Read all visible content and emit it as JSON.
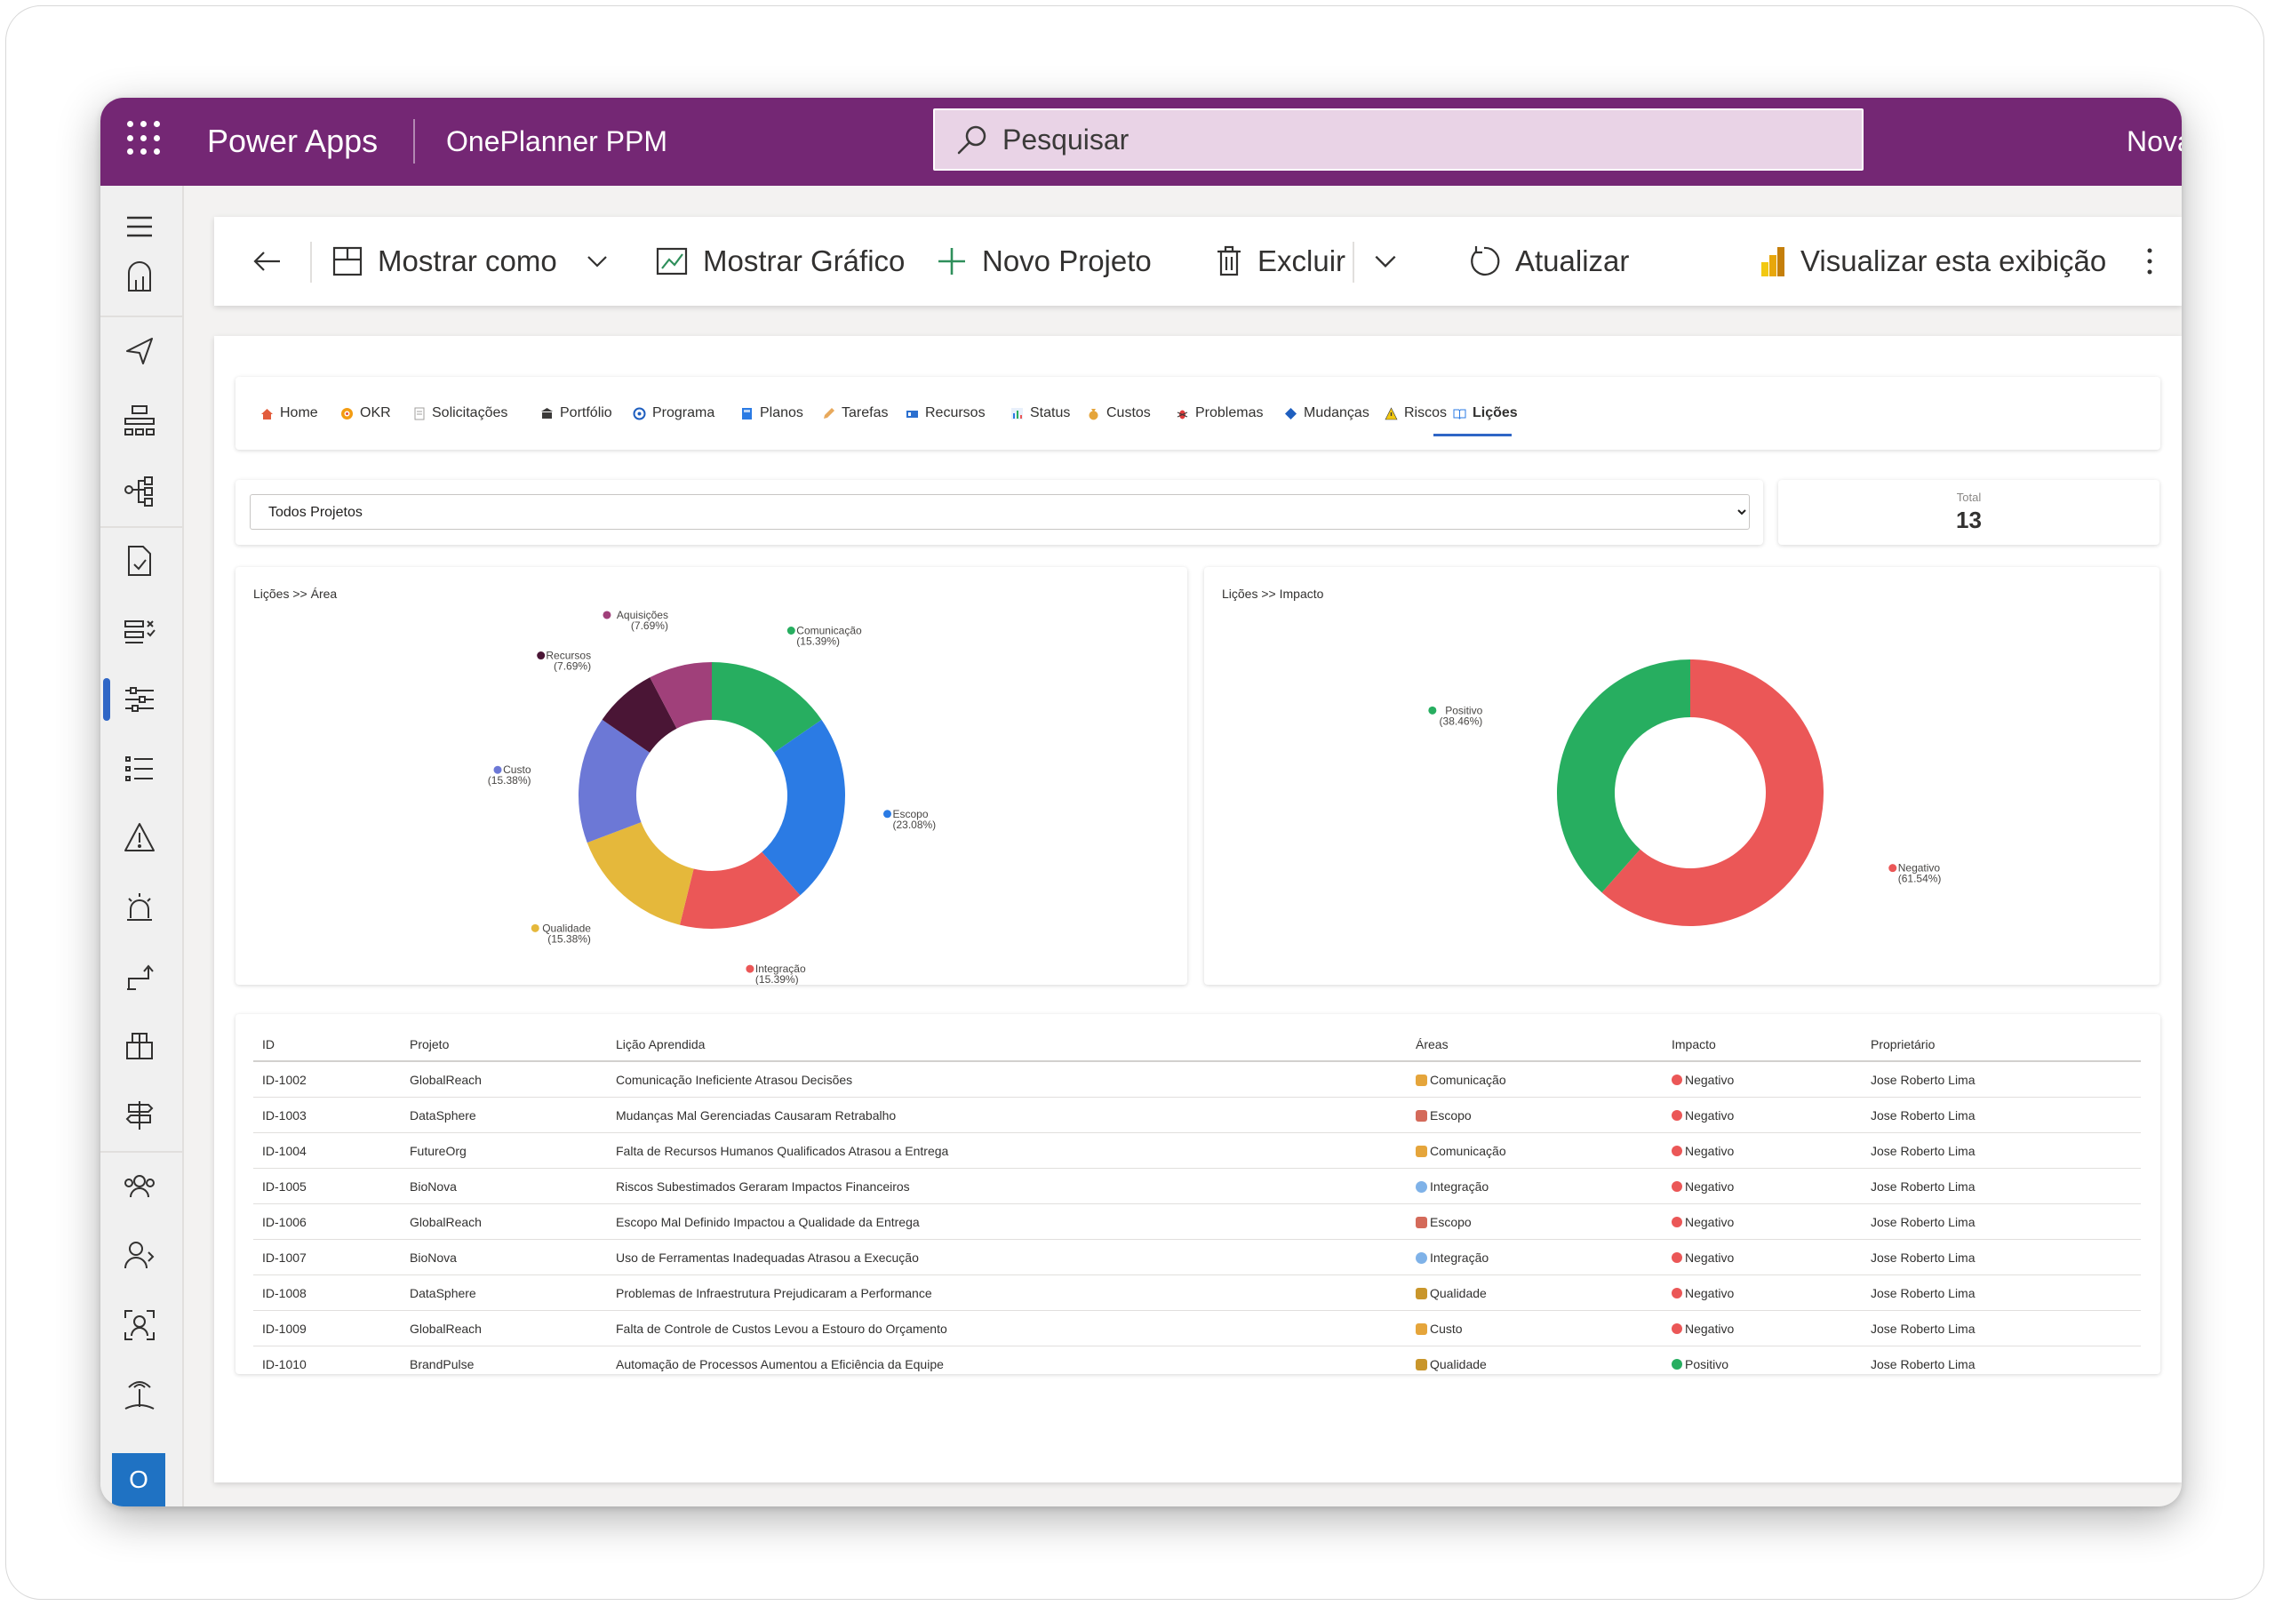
{
  "app": {
    "brand": "Power Apps",
    "name": "OnePlanner PPM",
    "search_placeholder": "Pesquisar",
    "new_label": "Nova",
    "avatar_initial": "O"
  },
  "commands": {
    "show_as": "Mostrar como",
    "show_chart": "Mostrar Gráfico",
    "new_project": "Novo Projeto",
    "delete": "Excluir",
    "refresh": "Atualizar",
    "visualize": "Visualizar esta exibição"
  },
  "tabs": [
    {
      "label": "Home",
      "icon": "home-icon"
    },
    {
      "label": "OKR",
      "icon": "target-icon"
    },
    {
      "label": "Solicitações",
      "icon": "document-icon"
    },
    {
      "label": "Portfólio",
      "icon": "building-icon"
    },
    {
      "label": "Programa",
      "icon": "program-icon"
    },
    {
      "label": "Planos",
      "icon": "book-icon"
    },
    {
      "label": "Tarefas",
      "icon": "pencil-icon"
    },
    {
      "label": "Recursos",
      "icon": "id-card-icon"
    },
    {
      "label": "Status",
      "icon": "bar-chart-icon"
    },
    {
      "label": "Custos",
      "icon": "money-bag-icon"
    },
    {
      "label": "Problemas",
      "icon": "bug-icon"
    },
    {
      "label": "Mudanças",
      "icon": "diamond-icon"
    },
    {
      "label": "Riscos",
      "icon": "warning-icon"
    },
    {
      "label": "Lições",
      "icon": "open-book-icon",
      "active": true
    }
  ],
  "filter": {
    "selected": "Todos Projetos"
  },
  "total": {
    "label": "Total",
    "value": "13"
  },
  "colors": {
    "purple": "#742774",
    "green": "#27ae60",
    "blue": "#2b7be4",
    "red": "#eb5757",
    "yellow": "#e5b83b",
    "indigo": "#6c78d6",
    "maroon": "#4a1535",
    "plum": "#a0407a"
  },
  "chart_data": [
    {
      "type": "pie",
      "title": "Lições >> Área",
      "donut": true,
      "slices": [
        {
          "label": "Comunicação",
          "pct_label": "(15.39%)",
          "value": 15.39,
          "color": "#27ae60"
        },
        {
          "label": "Escopo",
          "pct_label": "(23.08%)",
          "value": 23.08,
          "color": "#2b7be4"
        },
        {
          "label": "Integração",
          "pct_label": "(15.39%)",
          "value": 15.39,
          "color": "#eb5757"
        },
        {
          "label": "Qualidade",
          "pct_label": "(15.38%)",
          "value": 15.38,
          "color": "#e5b83b"
        },
        {
          "label": "Custo",
          "pct_label": "(15.38%)",
          "value": 15.38,
          "color": "#6c78d6"
        },
        {
          "label": "Recursos",
          "pct_label": "(7.69%)",
          "value": 7.69,
          "color": "#4a1535"
        },
        {
          "label": "Aquisições",
          "pct_label": "(7.69%)",
          "value": 7.69,
          "color": "#a0407a"
        }
      ]
    },
    {
      "type": "pie",
      "title": "Lições >> Impacto",
      "donut": true,
      "slices": [
        {
          "label": "Negativo",
          "pct_label": "(61.54%)",
          "value": 61.54,
          "color": "#eb5757"
        },
        {
          "label": "Positivo",
          "pct_label": "(38.46%)",
          "value": 38.46,
          "color": "#27ae60"
        }
      ]
    }
  ],
  "table": {
    "headers": [
      "ID",
      "Projeto",
      "Lição Aprendida",
      "Áreas",
      "Impacto",
      "Proprietário"
    ],
    "rows": [
      {
        "id": "ID-1002",
        "project": "GlobalReach",
        "lesson": "Comunicação Ineficiente Atrasou Decisões",
        "area": "Comunicação",
        "area_icon": "megaphone-icon",
        "impact": "Negativo",
        "impact_color": "#eb5757",
        "owner": "Jose Roberto Lima"
      },
      {
        "id": "ID-1003",
        "project": "DataSphere",
        "lesson": "Mudanças Mal Gerenciadas Causaram Retrabalho",
        "area": "Escopo",
        "area_icon": "memo-icon",
        "impact": "Negativo",
        "impact_color": "#eb5757",
        "owner": "Jose Roberto Lima"
      },
      {
        "id": "ID-1004",
        "project": "FutureOrg",
        "lesson": "Falta de Recursos Humanos Qualificados Atrasou a Entrega",
        "area": "Comunicação",
        "area_icon": "megaphone-icon",
        "impact": "Negativo",
        "impact_color": "#eb5757",
        "owner": "Jose Roberto Lima"
      },
      {
        "id": "ID-1005",
        "project": "BioNova",
        "lesson": "Riscos Subestimados Geraram Impactos Financeiros",
        "area": "Integração",
        "area_icon": "globe-icon",
        "impact": "Negativo",
        "impact_color": "#eb5757",
        "owner": "Jose Roberto Lima"
      },
      {
        "id": "ID-1006",
        "project": "GlobalReach",
        "lesson": "Escopo Mal Definido Impactou a Qualidade da Entrega",
        "area": "Escopo",
        "area_icon": "memo-icon",
        "impact": "Negativo",
        "impact_color": "#eb5757",
        "owner": "Jose Roberto Lima"
      },
      {
        "id": "ID-1007",
        "project": "BioNova",
        "lesson": "Uso de Ferramentas Inadequadas Atrasou a Execução",
        "area": "Integração",
        "area_icon": "globe-icon",
        "impact": "Negativo",
        "impact_color": "#eb5757",
        "owner": "Jose Roberto Lima"
      },
      {
        "id": "ID-1008",
        "project": "DataSphere",
        "lesson": "Problemas de Infraestrutura Prejudicaram a Performance",
        "area": "Qualidade",
        "area_icon": "trophy-icon",
        "impact": "Negativo",
        "impact_color": "#eb5757",
        "owner": "Jose Roberto Lima"
      },
      {
        "id": "ID-1009",
        "project": "GlobalReach",
        "lesson": "Falta de Controle de Custos Levou a Estouro do Orçamento",
        "area": "Custo",
        "area_icon": "money-bag-icon",
        "impact": "Negativo",
        "impact_color": "#eb5757",
        "owner": "Jose Roberto Lima"
      },
      {
        "id": "ID-1010",
        "project": "BrandPulse",
        "lesson": "Automação de Processos Aumentou a Eficiência da Equipe",
        "area": "Qualidade",
        "area_icon": "trophy-icon",
        "impact": "Positivo",
        "impact_color": "#27ae60",
        "owner": "Jose Roberto Lima"
      }
    ]
  }
}
